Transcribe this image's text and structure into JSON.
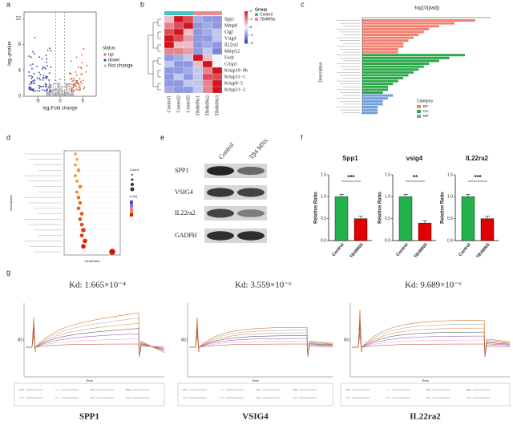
{
  "panels": {
    "a": {
      "label": "a",
      "xlabel": "log₂Fold change",
      "ylabel": "-log₁₀pvalue",
      "xlim": [
        -8,
        8
      ],
      "ylim": [
        0,
        13
      ],
      "xticks": [
        -5,
        0,
        5
      ],
      "yticks": [
        0,
        4,
        8,
        12
      ],
      "legend_title": "status",
      "legend": [
        {
          "name": "up",
          "color": "#e0562a"
        },
        {
          "name": "down",
          "color": "#2a3f9d"
        },
        {
          "name": "Not change",
          "color": "#b0b0b0"
        }
      ]
    },
    "b": {
      "label": "b",
      "genes": [
        "Spp1",
        "Mmp8",
        "Ctgf",
        "Vsig4",
        "Il22ra2",
        "Mmp12",
        "Fosb",
        "Crisp1",
        "Krtap19−9b",
        "Krtap31−1",
        "Krtap9−5",
        "Krtap31−2"
      ],
      "columns": [
        "Control1",
        "Control2",
        "Control3",
        "TB4MNs1",
        "TB4MNs2",
        "TB4MNs3"
      ],
      "values": [
        [
          0.5,
          2,
          1.5,
          -0.8,
          -1,
          -1
        ],
        [
          1,
          1.5,
          2,
          -1,
          -0.8,
          -1
        ],
        [
          1.5,
          2,
          0.5,
          -1,
          -0.8,
          -0.5
        ],
        [
          2,
          1.5,
          0.8,
          -1,
          -1,
          -0.5
        ],
        [
          2,
          0.5,
          0.5,
          -1,
          -0.8,
          -1
        ],
        [
          1,
          1,
          0.8,
          -1,
          -0.5,
          -1.2
        ],
        [
          -1,
          -0.8,
          -0.5,
          2,
          0.5,
          0
        ],
        [
          -0.5,
          -1,
          -1,
          0.5,
          2,
          0
        ],
        [
          -1,
          -1,
          -0.8,
          -0.5,
          1,
          2
        ],
        [
          -1,
          -0.5,
          -1,
          -0.5,
          1.5,
          1.5
        ],
        [
          -1,
          -1,
          -0.5,
          -0.5,
          1,
          2
        ],
        [
          -0.8,
          -1,
          -1,
          -0.5,
          1,
          2
        ]
      ],
      "scale_lim": [
        -2,
        2
      ],
      "scale_ticks": [
        2,
        1,
        0,
        -1,
        -2
      ],
      "legend_title": "Group",
      "groups": [
        {
          "name": "Control",
          "color": "#3cc6c6"
        },
        {
          "name": "TB4MNs",
          "color": "#f08a8a"
        }
      ]
    },
    "c": {
      "label": "c",
      "axis_title": "-log10(padj)",
      "ylabel": "Description",
      "xlim": [
        0,
        25
      ],
      "legend_title": "Category",
      "series": [
        {
          "name": "BP",
          "color": "#f28072",
          "values": [
            22,
            18,
            15,
            13,
            12,
            11,
            10,
            9,
            8,
            8,
            7,
            7
          ]
        },
        {
          "name": "CC",
          "color": "#2ca84a",
          "values": [
            20,
            17,
            15,
            13,
            12,
            11,
            10,
            9,
            8,
            7,
            6,
            5,
            5,
            4
          ]
        },
        {
          "name": "MF",
          "color": "#6fa0dc",
          "values": [
            6,
            5,
            4,
            4,
            3,
            3,
            3
          ]
        }
      ]
    },
    "d": {
      "label": "d",
      "xlabel": "GeneRatio",
      "ylabel": "Description",
      "count_title": "Count",
      "padj_title": "p.adj",
      "xlim": [
        0.05,
        0.4
      ],
      "gene_ratio": [
        0.12,
        0.13,
        0.12,
        0.14,
        0.12,
        0.13,
        0.15,
        0.13,
        0.14,
        0.15,
        0.14,
        0.16,
        0.15,
        0.16,
        0.17,
        0.16,
        0.18,
        0.17,
        0.35
      ],
      "count": [
        2,
        2,
        2,
        3,
        2,
        2,
        3,
        2,
        3,
        3,
        3,
        3,
        3,
        3,
        4,
        3,
        4,
        4,
        6
      ],
      "colors": [
        "#f5a623",
        "#f5a623",
        "#f39a1e",
        "#f39a1e",
        "#f08c1a",
        "#f08c1a",
        "#ee8018",
        "#ee8018",
        "#ec7415",
        "#ea6a12",
        "#e8600f",
        "#e6560d",
        "#e44c0b",
        "#e24209",
        "#e03807",
        "#de2e05",
        "#dc2404",
        "#da1a02",
        "#d61000"
      ]
    },
    "e": {
      "label": "e",
      "columns": [
        "Control",
        "Tβ4 MNs"
      ],
      "rows": [
        "SPP1",
        "VSIG4",
        "IL22ra2",
        "GADPH"
      ]
    },
    "f": {
      "label": "f",
      "ylabel": "Relative Ratio",
      "ylim": [
        0,
        1.5
      ],
      "yticks": [
        {
          "value": 0,
          "label": "0.0"
        },
        {
          "value": 0.5,
          "label": "0.5"
        },
        {
          "value": 1,
          "label": "1.0"
        },
        {
          "value": 1.5,
          "label": "1.5"
        }
      ],
      "colors": [
        "#22b14c",
        "#e00000"
      ],
      "charts": [
        {
          "title": "Spp1",
          "categories": [
            "Control",
            "TB4MNS"
          ],
          "values": [
            1.0,
            0.5
          ],
          "sig": "***"
        },
        {
          "title": "vsig4",
          "categories": [
            "Control",
            "TB4MNS"
          ],
          "values": [
            1.0,
            0.4
          ],
          "sig": "**"
        },
        {
          "title": "IL22ra2",
          "categories": [
            "Control",
            "TB4MNS"
          ],
          "values": [
            1.0,
            0.5
          ],
          "sig": "***"
        }
      ]
    },
    "g": {
      "label": "g",
      "ylabel": "RU",
      "xlabel": "Time",
      "plots": [
        {
          "kd": "Kd: 1.665×10⁻⁴",
          "name": "SPP1"
        },
        {
          "kd": "Kd: 3.559×10⁻⁶",
          "name": "VSIG4"
        },
        {
          "kd": "Kd: 9.689×10⁻⁶",
          "name": "IL22ra2"
        }
      ]
    }
  }
}
